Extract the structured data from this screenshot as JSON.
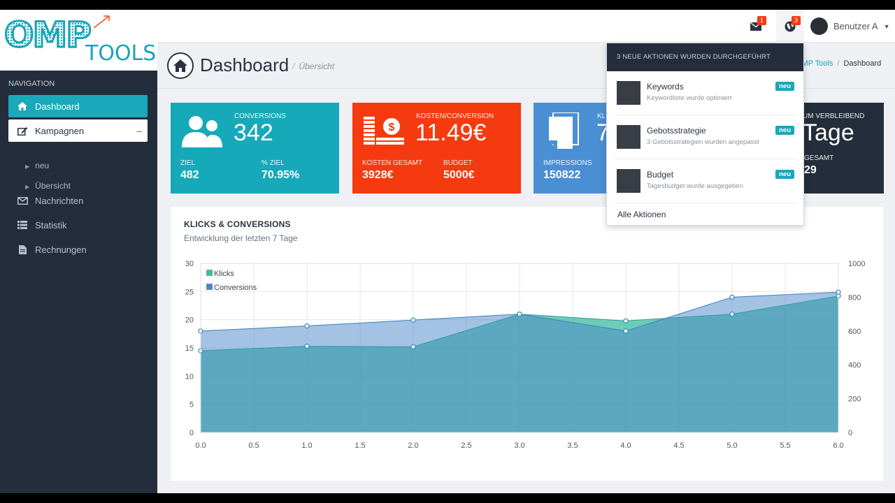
{
  "brand": {
    "logo_main": "OMP",
    "logo_sub": "TOOLS"
  },
  "sidebar": {
    "heading": "NAVIGATION",
    "items": [
      {
        "label": "Dashboard",
        "icon": "home-icon"
      },
      {
        "label": "Kampagnen",
        "icon": "edit-icon",
        "toggle": "–"
      },
      {
        "label": "neu"
      },
      {
        "label": "Übersicht"
      },
      {
        "label": "Nachrichten",
        "icon": "envelope-icon"
      },
      {
        "label": "Statistik",
        "icon": "list-icon"
      },
      {
        "label": "Rechnungen",
        "icon": "file-icon"
      }
    ]
  },
  "topbar": {
    "mail_badge": "1",
    "globe_badge": "3",
    "user_name": "Benutzer A"
  },
  "header": {
    "title": "Dashboard",
    "subtitle": "Übersicht",
    "breadcrumb_link": "OMP Tools",
    "breadcrumb_current": "Dashboard"
  },
  "cards": [
    {
      "label": "CONVERSIONS",
      "value": "342",
      "sub1_label": "ZIEL",
      "sub1_value": "482",
      "sub2_label": "% ZIEL",
      "sub2_value": "70.95%",
      "color": "#16a9ba"
    },
    {
      "label": "KOSTEN/CONVERSION",
      "value": "11.49€",
      "sub1_label": "KOSTEN GESAMT",
      "sub1_value": "3928€",
      "sub2_label": "BUDGET",
      "sub2_value": "5000€",
      "color": "#f53a0f"
    },
    {
      "label": "KL",
      "value": "7",
      "sub1_label": "IMPRESSIONS",
      "sub1_value": "150822",
      "color": "#4a8fd3"
    },
    {
      "label": "UM VERBLEIBEND",
      "value": "Tage",
      "sub1_label": "GESAMT",
      "sub1_value": "29",
      "color": "#232d3b"
    }
  ],
  "chart_data": {
    "type": "area",
    "title": "KLICKS & CONVERSIONS",
    "subtitle": "Entwicklung der letzten 7 Tage",
    "x": [
      0,
      1,
      2,
      3,
      4,
      5,
      6
    ],
    "x_ticks": [
      "0.0",
      "0.5",
      "1.0",
      "1.5",
      "2.0",
      "2.5",
      "3.0",
      "3.5",
      "4.0",
      "4.5",
      "5.0",
      "5.5",
      "6.0"
    ],
    "y_left_ticks": [
      "0",
      "5",
      "10",
      "15",
      "20",
      "25",
      "30"
    ],
    "y_right_ticks": [
      "0",
      "200",
      "400",
      "600",
      "800",
      "1000"
    ],
    "ylim_left": [
      0,
      30
    ],
    "ylim_right": [
      0,
      1000
    ],
    "grid": true,
    "legend_position": "top-left",
    "series": [
      {
        "name": "Klicks",
        "axis": "left",
        "color": "#3cb9a0",
        "values": [
          14.5,
          15.3,
          15.2,
          21,
          19.8,
          21,
          24.2
        ]
      },
      {
        "name": "Conversions",
        "axis": "right",
        "color": "#4a86c8",
        "values": [
          600,
          630,
          665,
          700,
          600,
          800,
          830
        ]
      }
    ]
  },
  "dropdown": {
    "header": "3 NEUE AKTIONEN WURDEN DURCHGEFÜHRT",
    "items": [
      {
        "title": "Keywords",
        "desc": "Keywordliste wurde optimiert",
        "badge": "neu"
      },
      {
        "title": "Gebotsstrategie",
        "desc": "3 Gebotsstrategien wurden angepasst",
        "badge": "neu"
      },
      {
        "title": "Budget",
        "desc": "Tagesbudget wurde ausgegeben",
        "badge": "neu"
      }
    ],
    "footer": "Alle Aktionen"
  }
}
